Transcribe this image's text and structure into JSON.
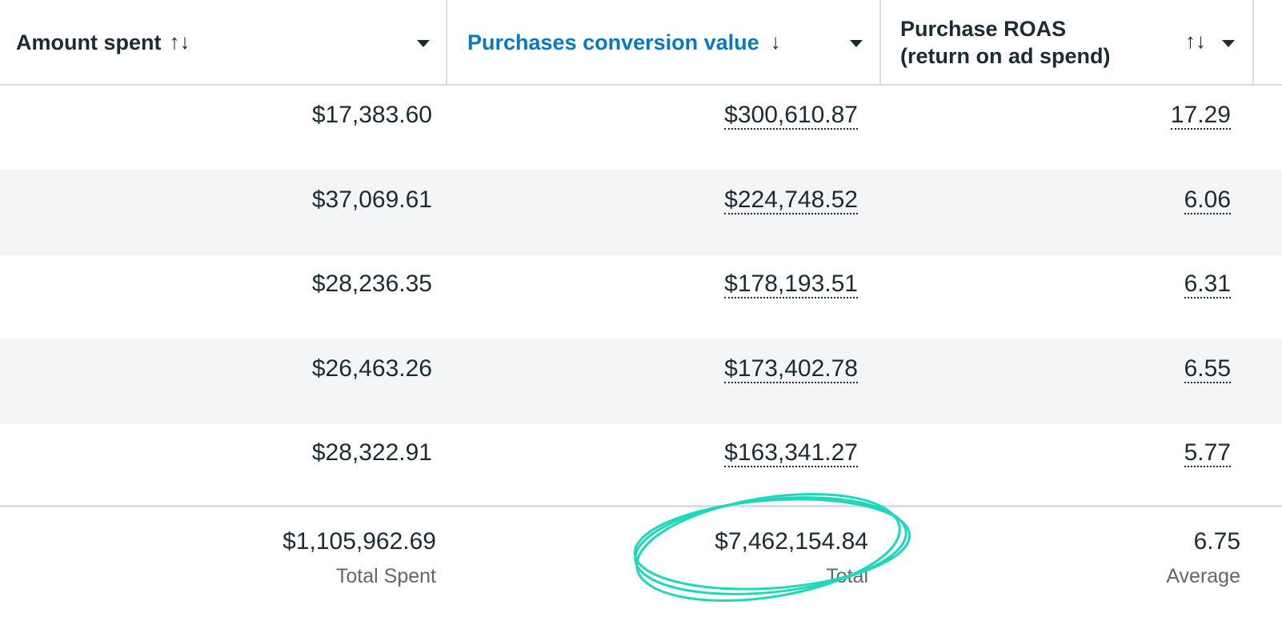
{
  "columns": [
    {
      "title": "Amount spent",
      "sort_icon": "sort-both-icon",
      "sort_glyph": "↑↓"
    },
    {
      "title": "Purchases conversion value",
      "sort_icon": "sort-down-icon",
      "sort_glyph": "↓",
      "active": true,
      "color": "#0a78be"
    },
    {
      "title_line1": "Purchase ROAS",
      "title_line2": "(return on ad spend)",
      "sort_icon": "sort-both-icon",
      "sort_glyph": "↑↓"
    }
  ],
  "rows": [
    {
      "spent": "$17,383.60",
      "value": "$300,610.87",
      "roas": "17.29"
    },
    {
      "spent": "$37,069.61",
      "value": "$224,748.52",
      "roas": "6.06"
    },
    {
      "spent": "$28,236.35",
      "value": "$178,193.51",
      "roas": "6.31"
    },
    {
      "spent": "$26,463.26",
      "value": "$173,402.78",
      "roas": "6.55"
    },
    {
      "spent": "$28,322.91",
      "value": "$163,341.27",
      "roas": "5.77"
    }
  ],
  "footer": {
    "spent": "$1,105,962.69",
    "spent_label": "Total Spent",
    "value": "$7,462,154.84",
    "value_label": "Total",
    "roas": "6.75",
    "roas_label": "Average"
  },
  "highlight_color": "#1ed8bb"
}
